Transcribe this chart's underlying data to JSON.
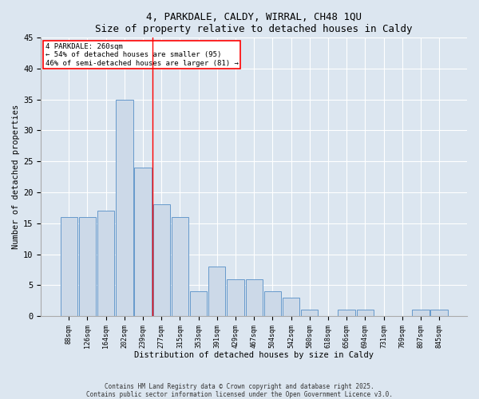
{
  "title": "4, PARKDALE, CALDY, WIRRAL, CH48 1QU",
  "subtitle": "Size of property relative to detached houses in Caldy",
  "xlabel": "Distribution of detached houses by size in Caldy",
  "ylabel": "Number of detached properties",
  "bar_labels": [
    "88sqm",
    "126sqm",
    "164sqm",
    "202sqm",
    "239sqm",
    "277sqm",
    "315sqm",
    "353sqm",
    "391sqm",
    "429sqm",
    "467sqm",
    "504sqm",
    "542sqm",
    "580sqm",
    "618sqm",
    "656sqm",
    "694sqm",
    "731sqm",
    "769sqm",
    "807sqm",
    "845sqm"
  ],
  "bar_values": [
    16,
    16,
    17,
    35,
    24,
    18,
    16,
    4,
    8,
    6,
    6,
    4,
    3,
    1,
    0,
    1,
    1,
    0,
    0,
    1,
    1
  ],
  "bar_color": "#ccd9e8",
  "bar_edge_color": "#6699cc",
  "vline_x": 4.5,
  "vline_color": "red",
  "annotation_text": "4 PARKDALE: 260sqm\n← 54% of detached houses are smaller (95)\n46% of semi-detached houses are larger (81) →",
  "annotation_box_color": "white",
  "annotation_box_edge": "red",
  "ylim": [
    0,
    45
  ],
  "yticks": [
    0,
    5,
    10,
    15,
    20,
    25,
    30,
    35,
    40,
    45
  ],
  "footer": "Contains HM Land Registry data © Crown copyright and database right 2025.\nContains public sector information licensed under the Open Government Licence v3.0.",
  "bg_color": "#dce6f0",
  "plot_bg_color": "#dce6f0"
}
